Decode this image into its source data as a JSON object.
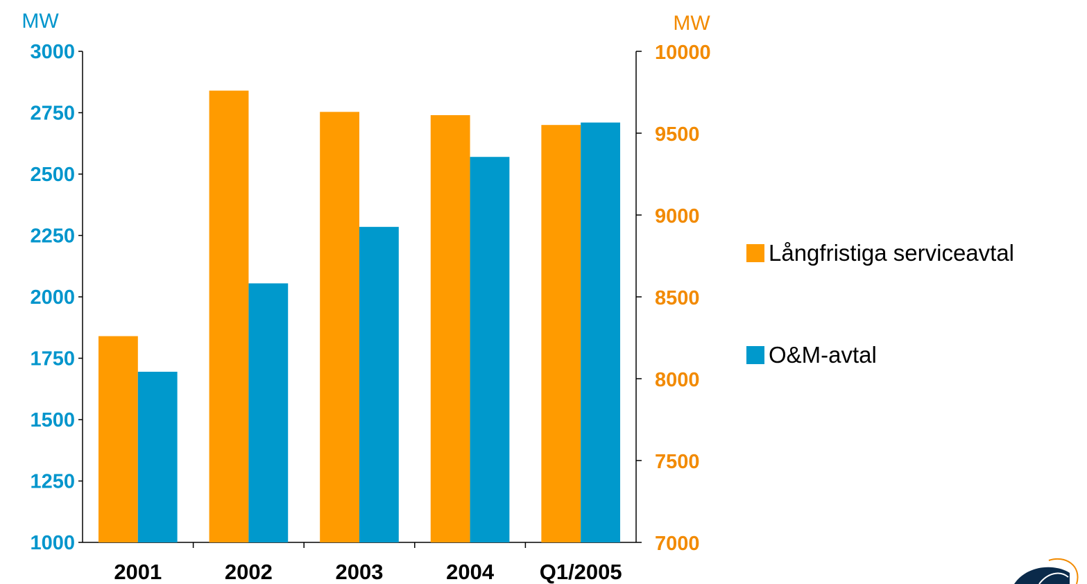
{
  "chart_data": {
    "type": "bar",
    "categories": [
      "2001",
      "2002",
      "2003",
      "2004",
      "Q1/2005"
    ],
    "y_left": {
      "unit": "MW",
      "ticks": [
        "1000",
        "1250",
        "1500",
        "1750",
        "2000",
        "2250",
        "2500",
        "2750",
        "3000"
      ],
      "ylim": [
        1000,
        3000
      ]
    },
    "y_right": {
      "unit": "MW",
      "ticks": [
        "7000",
        "7500",
        "8000",
        "8500",
        "9000",
        "9500",
        "10000"
      ],
      "ylim": [
        7000,
        10000
      ]
    },
    "series": [
      {
        "name": "Långfristiga serviceavtal",
        "axis": "right",
        "color": "#ff9b00",
        "values": [
          8260,
          9760,
          9630,
          9610,
          9550
        ]
      },
      {
        "name": "O&M-avtal",
        "axis": "left",
        "color": "#0099cc",
        "values": [
          1695,
          2055,
          2285,
          2570,
          2710
        ]
      }
    ],
    "legend_position": "right",
    "grid": false
  }
}
